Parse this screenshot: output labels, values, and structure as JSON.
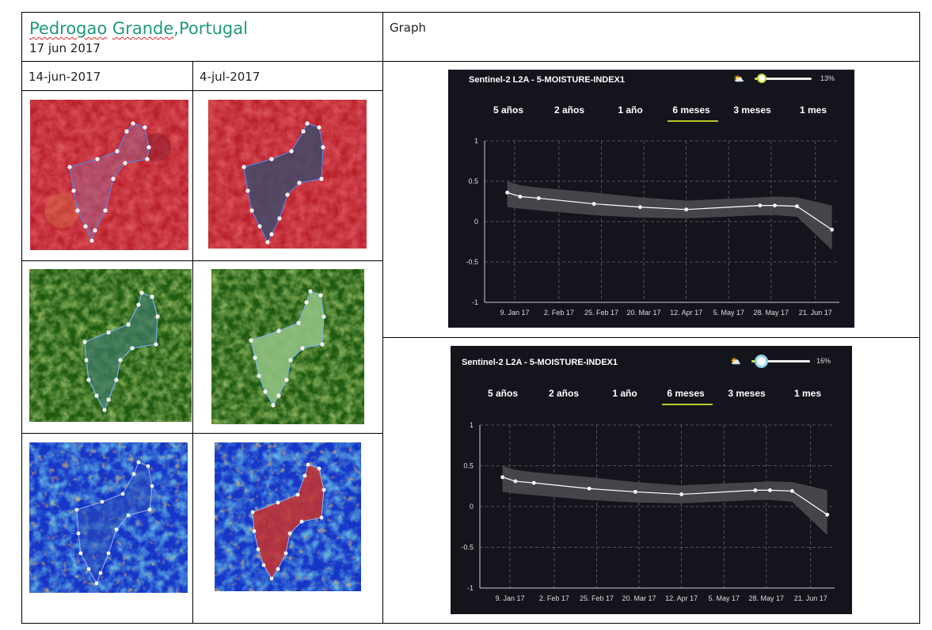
{
  "document": {
    "location_part1": "Pedrogao",
    "location_part2": " ",
    "location_part3": "Grande",
    "location_part4": ",Portugal",
    "date": "17 jun 2017",
    "graph_label": "Graph",
    "col_before": "14-jun-2017",
    "col_after": "4-jul-2017"
  },
  "icons": {
    "cloud": "cloud-sun-icon"
  },
  "colors": {
    "title_teal": "#1f9a7c",
    "panel_bg": "#14141c",
    "tab_underline": "#b8c82a",
    "band": "#4a4a4f"
  },
  "panels": [
    {
      "title": "Sentinel-2 L2A - 5-MOISTURE-INDEX1",
      "cloud_pct": "13%",
      "cloud_value": 13,
      "tabs": [
        "5 años",
        "2 años",
        "1 año",
        "6 meses",
        "3 meses",
        "1 mes"
      ],
      "active_tab": "6 meses"
    },
    {
      "title": "Sentinel-2 L2A - 5-MOISTURE-INDEX1",
      "cloud_pct": "16%",
      "cloud_value": 16,
      "tabs": [
        "5 años",
        "2 años",
        "1 año",
        "6 meses",
        "3 meses",
        "1 mes"
      ],
      "active_tab": "6 meses"
    }
  ],
  "chart_data": [
    {
      "type": "line",
      "title": "",
      "xlabel": "",
      "ylabel": "",
      "x_ticks": [
        "9. Jan 17",
        "2. Feb 17",
        "25. Feb 17",
        "20. Mar 17",
        "12. Apr 17",
        "5. May 17",
        "28. May 17",
        "21. Jun 17"
      ],
      "y_ticks": [
        "1",
        "0.5",
        "0",
        "-0.5",
        "-1"
      ],
      "ylim": [
        -1,
        1
      ],
      "grid": true,
      "points": [
        {
          "date": "2017-01-05",
          "value": 0.36
        },
        {
          "date": "2017-01-12",
          "value": 0.31
        },
        {
          "date": "2017-01-22",
          "value": 0.29
        },
        {
          "date": "2017-02-21",
          "value": 0.22
        },
        {
          "date": "2017-03-18",
          "value": 0.18
        },
        {
          "date": "2017-04-12",
          "value": 0.15
        },
        {
          "date": "2017-05-22",
          "value": 0.2
        },
        {
          "date": "2017-05-30",
          "value": 0.2
        },
        {
          "date": "2017-06-11",
          "value": 0.19
        },
        {
          "date": "2017-06-30",
          "value": -0.1
        }
      ],
      "band_upper": [
        0.5,
        0.45,
        0.42,
        0.36,
        0.3,
        0.26,
        0.3,
        0.31,
        0.3,
        0.2
      ],
      "band_lower": [
        0.18,
        0.16,
        0.14,
        0.08,
        0.05,
        0.04,
        0.08,
        0.08,
        0.06,
        -0.35
      ]
    },
    {
      "type": "line",
      "title": "",
      "xlabel": "",
      "ylabel": "",
      "x_ticks": [
        "9. Jan 17",
        "2. Feb 17",
        "25. Feb 17",
        "20. Mar 17",
        "12. Apr 17",
        "5. May 17",
        "28. May 17",
        "21. Jun 17"
      ],
      "y_ticks": [
        "1",
        "0.5",
        "0",
        "-0.5",
        "-1"
      ],
      "ylim": [
        -1,
        1
      ],
      "grid": true,
      "points": [
        {
          "date": "2017-01-05",
          "value": 0.36
        },
        {
          "date": "2017-01-12",
          "value": 0.31
        },
        {
          "date": "2017-01-22",
          "value": 0.29
        },
        {
          "date": "2017-02-21",
          "value": 0.22
        },
        {
          "date": "2017-03-18",
          "value": 0.18
        },
        {
          "date": "2017-04-12",
          "value": 0.15
        },
        {
          "date": "2017-05-22",
          "value": 0.2
        },
        {
          "date": "2017-05-30",
          "value": 0.2
        },
        {
          "date": "2017-06-11",
          "value": 0.19
        },
        {
          "date": "2017-06-30",
          "value": -0.1
        }
      ],
      "band_upper": [
        0.5,
        0.45,
        0.42,
        0.36,
        0.3,
        0.26,
        0.3,
        0.31,
        0.3,
        0.2
      ],
      "band_lower": [
        0.18,
        0.16,
        0.14,
        0.08,
        0.05,
        0.04,
        0.08,
        0.08,
        0.06,
        -0.35
      ]
    }
  ]
}
